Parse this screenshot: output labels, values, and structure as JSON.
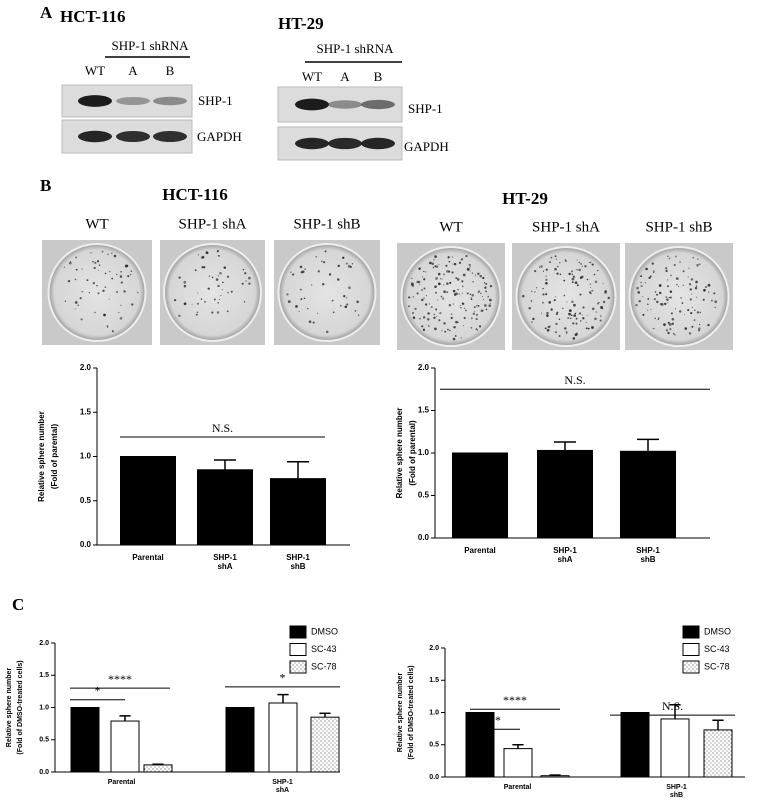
{
  "panels": [
    "A",
    "B",
    "C"
  ],
  "blots": [
    {
      "title": "HCT-116",
      "treatment": "SHP-1 shRNA",
      "lanes": [
        "WT",
        "A",
        "B"
      ],
      "bands": [
        "SHP-1",
        "GAPDH"
      ]
    },
    {
      "title": "HT-29",
      "treatment": "SHP-1 shRNA",
      "lanes": [
        "WT",
        "A",
        "B"
      ],
      "bands": [
        "SHP-1",
        "GAPDH"
      ]
    }
  ],
  "dishes": [
    {
      "title": "HCT-116",
      "labels": [
        "WT",
        "SHP-1 shA",
        "SHP-1 shB"
      ]
    },
    {
      "title": "HT-29",
      "labels": [
        "WT",
        "SHP-1 shA",
        "SHP-1 shB"
      ]
    }
  ],
  "chart_data": [
    {
      "type": "bar",
      "ylabel": [
        "Relative sphere number",
        "(Fold of parental)"
      ],
      "categories": [
        "Parental",
        "SHP-1 shA",
        "SHP-1 shB"
      ],
      "values": [
        1.0,
        0.85,
        0.75
      ],
      "errors": [
        0,
        0.11,
        0.19
      ],
      "color": "#000000",
      "ylim": [
        0,
        2
      ],
      "yticks": [
        {
          "value": 0,
          "label": "0.0"
        },
        {
          "value": 0.5,
          "label": "0.5"
        },
        {
          "value": 1,
          "label": "1.0"
        },
        {
          "value": 1.5,
          "label": "1.5"
        },
        {
          "value": 2,
          "label": "2.0"
        }
      ],
      "annotations": [
        "N.S."
      ]
    },
    {
      "type": "bar",
      "ylabel": [
        "Relative sphere number",
        "(Fold of parental)"
      ],
      "categories": [
        "Parental",
        "SHP-1 shA",
        "SHP-1 shB"
      ],
      "values": [
        1.0,
        1.03,
        1.02
      ],
      "errors": [
        0,
        0.1,
        0.14
      ],
      "color": "#000000",
      "ylim": [
        0,
        2
      ],
      "yticks": [
        {
          "value": 0,
          "label": "0.0"
        },
        {
          "value": 0.5,
          "label": "0.5"
        },
        {
          "value": 1,
          "label": "1.0"
        },
        {
          "value": 1.5,
          "label": "1.5"
        },
        {
          "value": 2,
          "label": "2.0"
        }
      ],
      "annotations": [
        "N.S."
      ]
    },
    {
      "type": "bar",
      "ylabel": [
        "Relative sphere number",
        "(Fold of DMSO-treated cells)"
      ],
      "categories": [
        "Parental",
        "SHP-1 shA"
      ],
      "series": [
        {
          "name": "DMSO",
          "color": "#000000",
          "values": [
            1.0,
            1.0
          ],
          "errors": [
            0,
            0
          ]
        },
        {
          "name": "SC-43",
          "color": "#ffffff",
          "values": [
            0.79,
            1.07
          ],
          "errors": [
            0.08,
            0.13
          ]
        },
        {
          "name": "SC-78",
          "color": "#ffffff",
          "fill_pattern": "dots",
          "values": [
            0.11,
            0.85
          ],
          "errors": [
            0.01,
            0.06
          ]
        }
      ],
      "ylim": [
        0,
        2
      ],
      "yticks": [
        {
          "value": 0,
          "label": "0.0"
        },
        {
          "value": 0.5,
          "label": "0.5"
        },
        {
          "value": 1,
          "label": "1.0"
        },
        {
          "value": 1.5,
          "label": "1.5"
        },
        {
          "value": 2,
          "label": "2.0"
        }
      ],
      "legend": "upper right",
      "annotations": [
        "*",
        "****",
        "*"
      ]
    },
    {
      "type": "bar",
      "ylabel": [
        "Relative sphere number",
        "(Fold of DMSO-treated cells)"
      ],
      "categories": [
        "Parental",
        "SHP-1 shB"
      ],
      "series": [
        {
          "name": "DMSO",
          "color": "#000000",
          "values": [
            1.0,
            1.0
          ],
          "errors": [
            0,
            0
          ]
        },
        {
          "name": "SC-43",
          "color": "#ffffff",
          "values": [
            0.44,
            0.9
          ],
          "errors": [
            0.06,
            0.22
          ]
        },
        {
          "name": "SC-78",
          "color": "#ffffff",
          "fill_pattern": "dots",
          "values": [
            0.02,
            0.73
          ],
          "errors": [
            0.01,
            0.15
          ]
        }
      ],
      "ylim": [
        0,
        2
      ],
      "yticks": [
        {
          "value": 0,
          "label": "0.0"
        },
        {
          "value": 0.5,
          "label": "0.5"
        },
        {
          "value": 1,
          "label": "1.0"
        },
        {
          "value": 1.5,
          "label": "1.5"
        },
        {
          "value": 2,
          "label": "2.0"
        }
      ],
      "legend": "upper right",
      "annotations": [
        "**",
        "****",
        "N.S."
      ]
    }
  ]
}
